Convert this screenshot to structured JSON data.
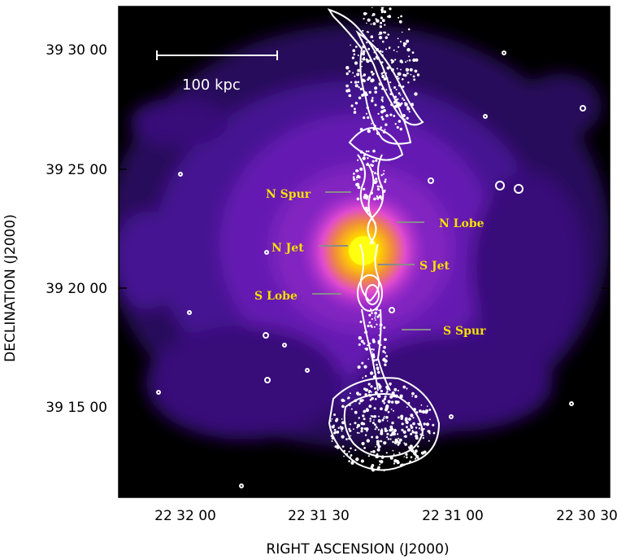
{
  "axes": {
    "x_title": "RIGHT ASCENSION  (J2000)",
    "y_title": "DECLINATION  (J2000)",
    "x_ticks": [
      "22 32 00",
      "22 31 30",
      "22 31 00",
      "22 30 30"
    ],
    "y_ticks": [
      "39 30 00",
      "39 25 00",
      "39 20 00",
      "39 15 00"
    ]
  },
  "scale_bar": {
    "label": "100 kpc"
  },
  "features": [
    {
      "id": "n-spur",
      "label": "N Spur"
    },
    {
      "id": "n-lobe",
      "label": "N Lobe"
    },
    {
      "id": "n-jet",
      "label": "N Jet"
    },
    {
      "id": "s-jet",
      "label": "S Jet"
    },
    {
      "id": "s-lobe",
      "label": "S Lobe"
    },
    {
      "id": "s-spur",
      "label": "S Spur"
    }
  ],
  "colors": {
    "background": "#000000",
    "halo_outer": "#3a0a6a",
    "halo_mid": "#7a22c8",
    "halo_inner": "#d23ad8",
    "core": "#ffee00",
    "contours": "#ffffff",
    "labels": "#f5e000"
  }
}
